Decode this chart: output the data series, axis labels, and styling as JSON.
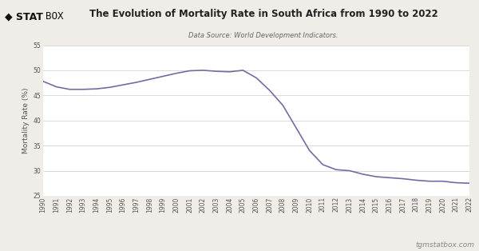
{
  "title": "The Evolution of Mortality Rate in South Africa from 1990 to 2022",
  "subtitle": "Data Source: World Development Indicators.",
  "ylabel": "Mortality Rate (%)",
  "line_color": "#7B68A0",
  "line_label": "South Africa",
  "plot_bg_color": "#ffffff",
  "fig_bg_color": "#f0ede8",
  "header_bg_color": "#ffffff",
  "ylim": [
    25,
    55
  ],
  "yticks": [
    25,
    30,
    35,
    40,
    45,
    50,
    55
  ],
  "footer_text": "tgmstatbox.com",
  "years": [
    1990,
    1991,
    1992,
    1993,
    1994,
    1995,
    1996,
    1997,
    1998,
    1999,
    2000,
    2001,
    2002,
    2003,
    2004,
    2005,
    2006,
    2007,
    2008,
    2009,
    2010,
    2011,
    2012,
    2013,
    2014,
    2015,
    2016,
    2017,
    2018,
    2019,
    2020,
    2021,
    2022
  ],
  "values": [
    47.8,
    46.7,
    46.2,
    46.2,
    46.3,
    46.6,
    47.1,
    47.6,
    48.2,
    48.8,
    49.4,
    49.9,
    50.0,
    49.8,
    49.7,
    50.0,
    48.5,
    46.0,
    43.0,
    38.5,
    34.0,
    31.2,
    30.2,
    30.0,
    29.3,
    28.8,
    28.6,
    28.4,
    28.1,
    27.9,
    27.9,
    27.6,
    27.5
  ],
  "logo_text1": "◆ STAT",
  "logo_text2": "BOX",
  "title_fontsize": 8.5,
  "subtitle_fontsize": 6.0,
  "ylabel_fontsize": 6.5,
  "tick_fontsize": 5.5,
  "legend_fontsize": 6.5,
  "footer_fontsize": 6.5
}
